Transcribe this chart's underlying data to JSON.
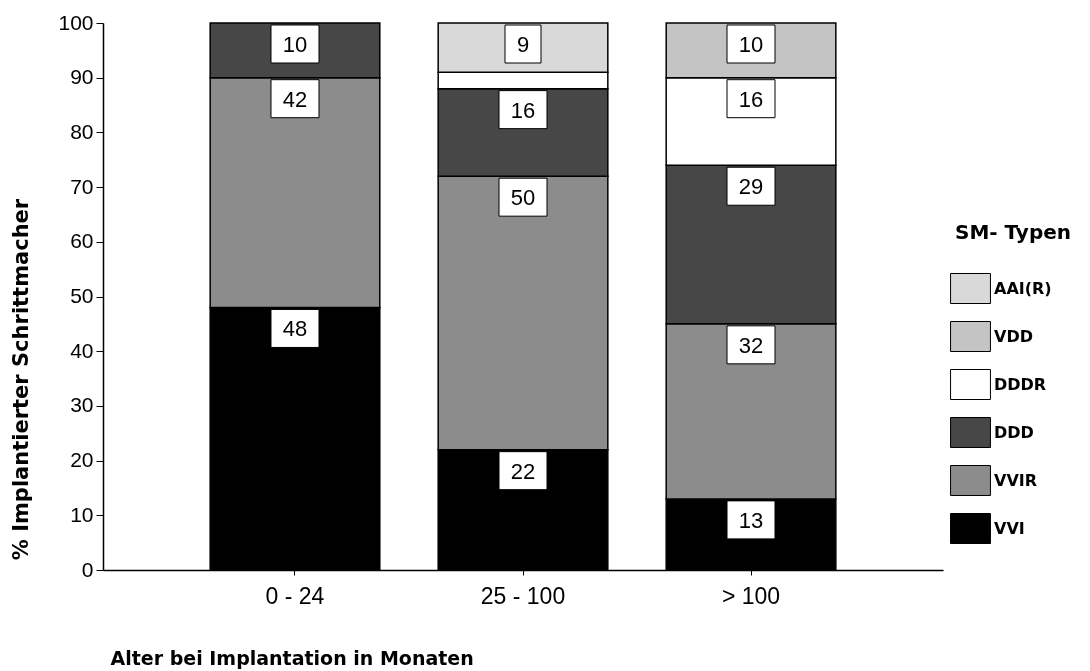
{
  "chart_data": {
    "type": "bar",
    "stacked": true,
    "xlabel": "Alter bei Implantation in Monaten",
    "ylabel": "% Implantierter Schrittmacher",
    "legend_title": "SM- Typen",
    "legend": "right",
    "categories": [
      "0 - 24",
      "25 - 100",
      "> 100"
    ],
    "ylim": [
      0,
      100
    ],
    "yticks": [
      0,
      10,
      20,
      30,
      40,
      50,
      60,
      70,
      80,
      90,
      100
    ],
    "series": [
      {
        "name": "VVI",
        "color": "#000000",
        "values": [
          48,
          22,
          13
        ],
        "value_labels": [
          "48",
          "22",
          "13"
        ]
      },
      {
        "name": "VVIR",
        "color": "#8c8c8c",
        "values": [
          42,
          50,
          32
        ],
        "value_labels": [
          "42",
          "50",
          "32"
        ]
      },
      {
        "name": "DDD",
        "color": "#474747",
        "values": [
          10,
          16,
          29
        ],
        "value_labels": [
          "10",
          "16",
          "29"
        ]
      },
      {
        "name": "DDDR",
        "color": "#ffffff",
        "values": [
          null,
          3,
          16
        ],
        "value_labels": [
          null,
          null,
          "16"
        ]
      },
      {
        "name": "VDD",
        "color": "#c4c4c4",
        "values": [
          null,
          null,
          10
        ],
        "value_labels": [
          null,
          null,
          "10"
        ]
      },
      {
        "name": "AAI(R)",
        "color": "#d9d9d9",
        "values": [
          null,
          9,
          null
        ],
        "value_labels": [
          null,
          "9",
          null
        ]
      }
    ]
  }
}
